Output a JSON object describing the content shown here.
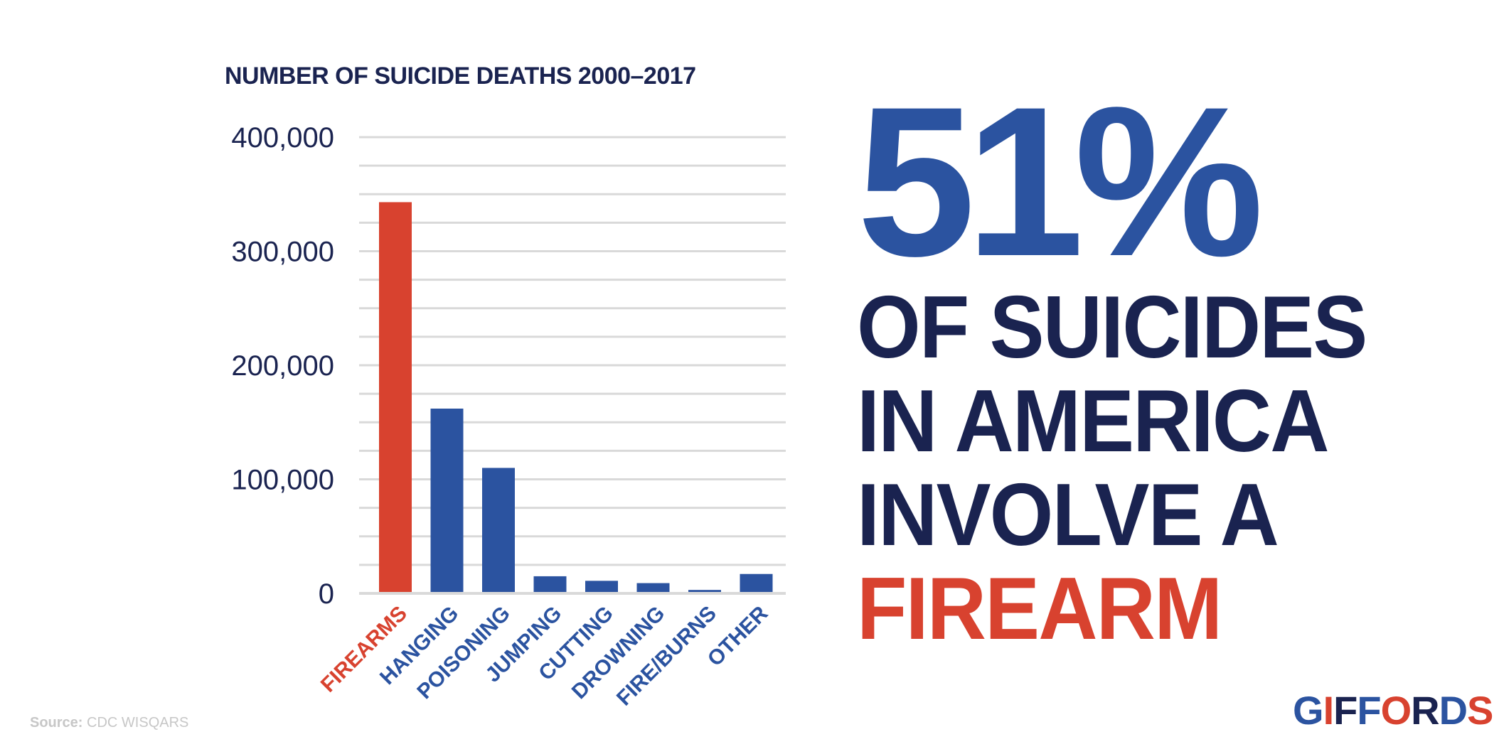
{
  "chart_data": {
    "type": "bar",
    "title": "NUMBER OF SUICIDE DEATHS 2000–2017",
    "categories": [
      "FIREARMS",
      "HANGING",
      "POISONING",
      "JUMPING",
      "CUTTING",
      "DROWNING",
      "FIRE/BURNS",
      "OTHER"
    ],
    "values": [
      343000,
      162000,
      110000,
      15000,
      11000,
      9000,
      3000,
      17000
    ],
    "highlight_category": "FIREARMS",
    "ylim": [
      0,
      400000
    ],
    "yticks": [
      "0",
      "100,000",
      "200,000",
      "300,000",
      "400,000"
    ],
    "ytick_values": [
      0,
      100000,
      200000,
      300000,
      400000
    ],
    "minor_gridlines_every": 25000,
    "grid": true,
    "xlabel": "",
    "ylabel": "",
    "colors": {
      "highlight": "#d8422f",
      "default": "#2b53a0",
      "grid": "#d9d9d9",
      "tick_text": "#1a2350"
    }
  },
  "headline": {
    "stat": "51%",
    "lines": [
      "OF SUICIDES",
      "IN AMERICA",
      "INVOLVE A"
    ],
    "accent_line": "FIREARM"
  },
  "source": {
    "label": "Source:",
    "text": "CDC WISQARS"
  },
  "logo": {
    "text": "GIFFORDS",
    "colors": [
      "#2b53a0",
      "#d8422f",
      "#1a2350"
    ]
  }
}
